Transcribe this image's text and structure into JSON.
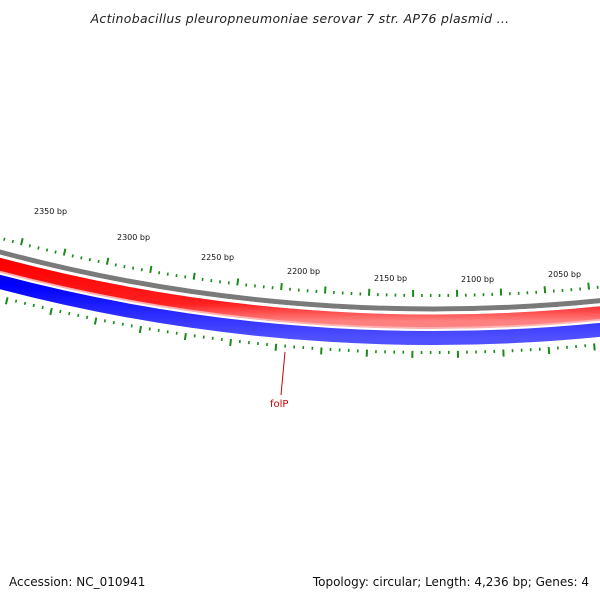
{
  "title": "Actinobacillus pleuropneumoniae serovar 7 str. AP76 plasmid ...",
  "accession": "Accession: NC_010941",
  "summary": "Topology: circular; Length: 4,236 bp; Genes: 4",
  "scale_labels": [
    "2350 bp",
    "2300 bp",
    "2250 bp",
    "2200 bp",
    "2150 bp",
    "2100 bp",
    "2050 bp"
  ],
  "gene_label": "folP",
  "colors": {
    "backbone": "#7a7a7a",
    "forward_strand": "#ff0000",
    "reverse_strand": "#0000ff",
    "ticks": "#1a8a1a",
    "gene_label": "#cc0000"
  }
}
